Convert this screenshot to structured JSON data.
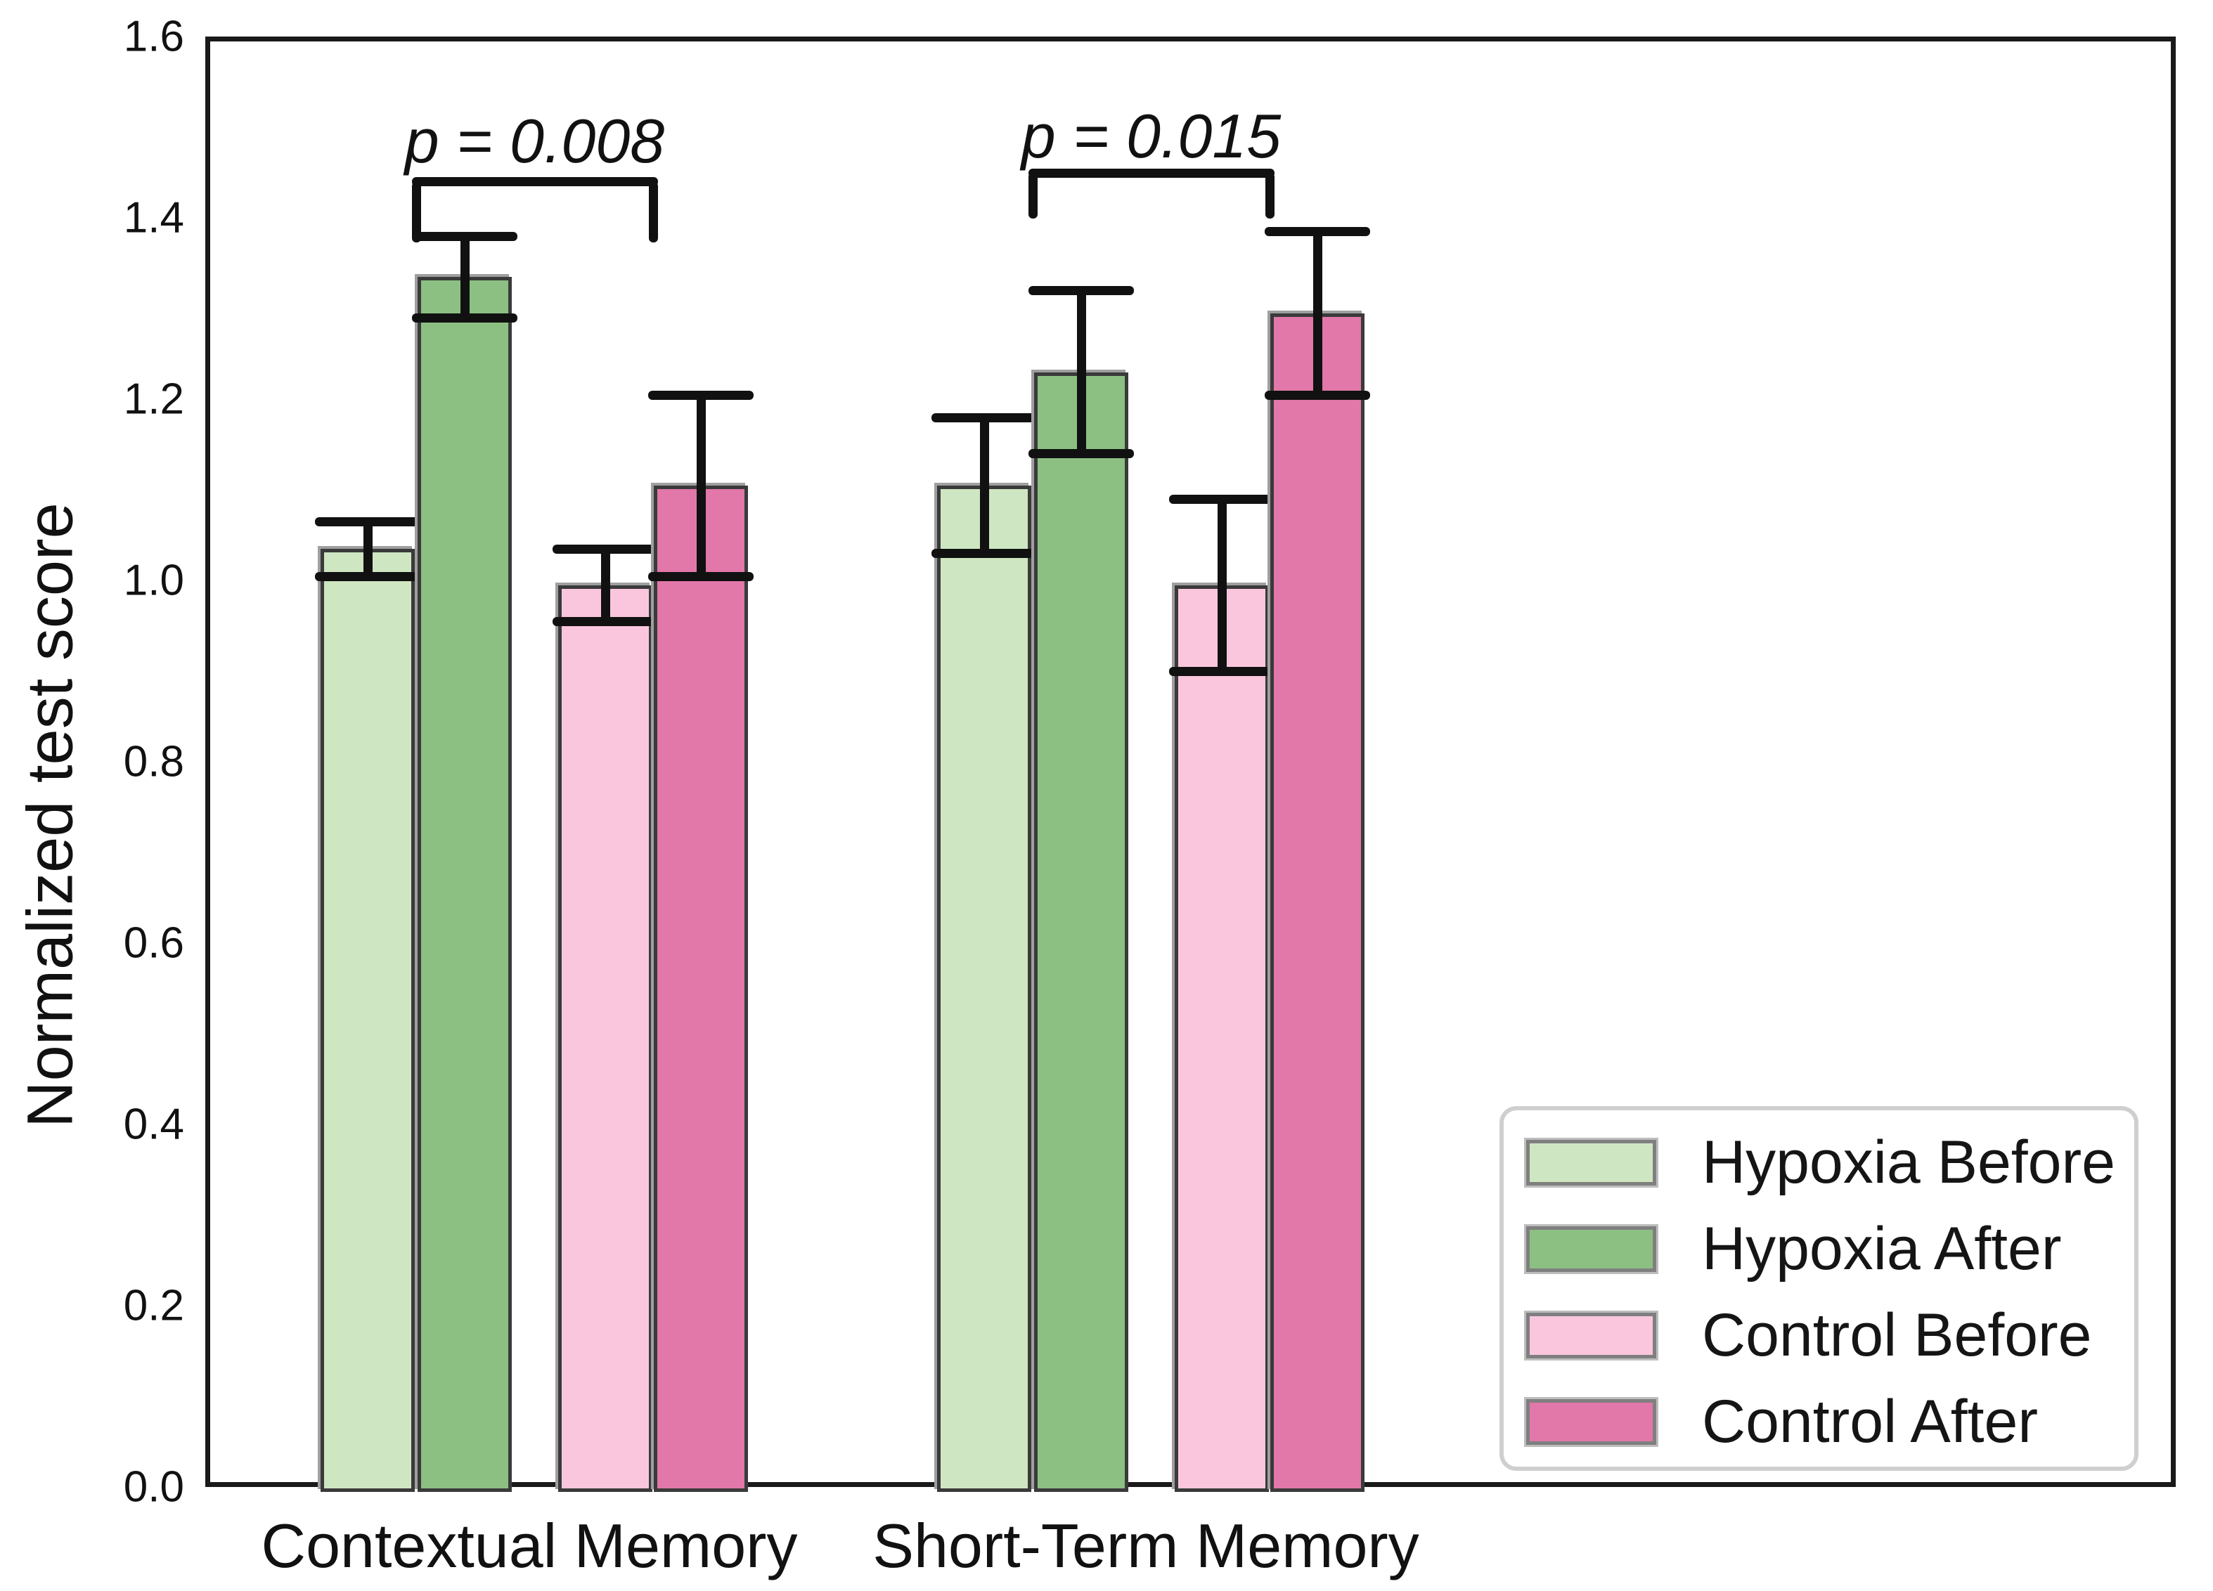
{
  "chart_data": {
    "type": "bar",
    "title": "",
    "xlabel": "",
    "ylabel": "Normalized test score",
    "ylim": [
      0,
      1.6
    ],
    "yticks": [
      "0.0",
      "0.2",
      "0.4",
      "0.6",
      "0.8",
      "1.0",
      "1.2",
      "1.4",
      "1.6"
    ],
    "grid": false,
    "categories": [
      "Contextual Memory",
      "Short-Term Memory"
    ],
    "series": [
      {
        "name": "Hypoxia Before",
        "color": "#cfe6c2",
        "values": [
          1.04,
          1.11
        ],
        "errors": [
          0.03,
          0.075
        ]
      },
      {
        "name": "Hypoxia After",
        "color": "#8cc083",
        "values": [
          1.34,
          1.235
        ],
        "errors": [
          0.045,
          0.09
        ]
      },
      {
        "name": "Control Before",
        "color": "#fac6de",
        "values": [
          1.0,
          1.0
        ],
        "errors": [
          0.04,
          0.095
        ]
      },
      {
        "name": "Control After",
        "color": "#e277a9",
        "values": [
          1.11,
          1.3
        ],
        "errors": [
          0.1,
          0.09
        ]
      }
    ],
    "annotations": [
      {
        "text": "p = 0.008",
        "category_index": 0,
        "line_y": 1.445,
        "tick_bottom_y": 1.378,
        "text_y": 1.49
      },
      {
        "text": "p = 0.015",
        "category_index": 1,
        "line_y": 1.455,
        "tick_bottom_y": 1.405,
        "text_y": 1.495
      }
    ],
    "legend": {
      "position": "lower right",
      "entries": [
        {
          "label": "Hypoxia Before",
          "color": "#cfe6c2"
        },
        {
          "label": "Hypoxia After",
          "color": "#8cc083"
        },
        {
          "label": "Control Before",
          "color": "#fac6de"
        },
        {
          "label": "Control After",
          "color": "#e277a9"
        }
      ]
    },
    "colors": {
      "axis": "#1a1a1a",
      "error_bars": "#111111",
      "bar_edge": "#3a3a3a",
      "bar_edge_halo": "#9f9f9f",
      "legend_border": "#cfcfcf",
      "text": "#111111"
    }
  }
}
